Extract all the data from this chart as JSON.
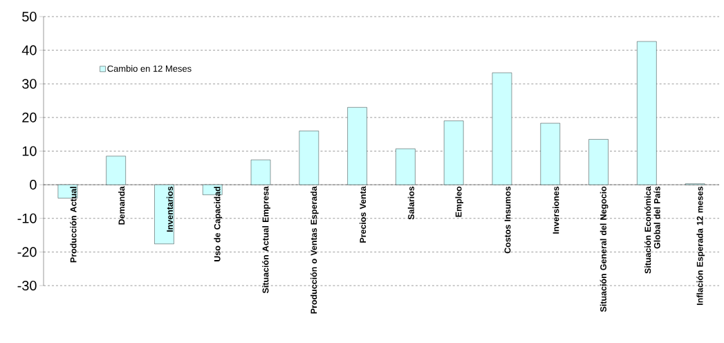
{
  "chart_data": {
    "type": "bar",
    "categories": [
      "Producción Actual",
      "Demanda",
      "Inventarios",
      "Uso de Capacidad",
      "Situación Actual Empresa",
      "Producción o Ventas Esperada",
      "Precios Venta",
      "Salarios",
      "Empleo",
      "Costos Insumos",
      "Inversiones",
      "Situación General del Negocio",
      "Situación Económica Global del País",
      "Inflación Esperada 12 meses"
    ],
    "series": [
      {
        "name": "Cambio en 12 Meses",
        "color": "#ccffff",
        "values": [
          -4,
          8.5,
          -17.6,
          -3,
          7.4,
          16,
          23,
          10.7,
          19,
          33.3,
          18.3,
          13.5,
          42.6,
          0.3
        ]
      }
    ],
    "ylim": [
      -30,
      50
    ],
    "yticks": [
      -30,
      -20,
      -10,
      0,
      10,
      20,
      30,
      40,
      50
    ],
    "grid": "y",
    "legend": "top left"
  }
}
